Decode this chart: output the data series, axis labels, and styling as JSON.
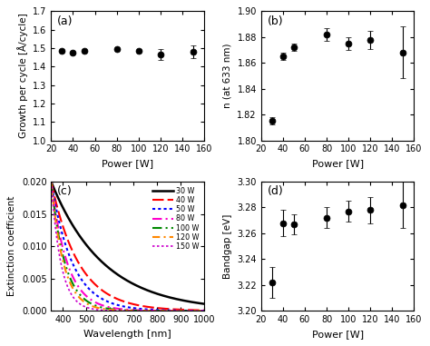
{
  "panel_a": {
    "x": [
      30,
      40,
      50,
      80,
      100,
      120,
      150
    ],
    "y": [
      1.487,
      1.477,
      1.487,
      1.497,
      1.487,
      1.465,
      1.48
    ],
    "yerr": [
      0.005,
      0.005,
      0.005,
      0.005,
      0.005,
      0.03,
      0.035
    ],
    "xlabel": "Power [W]",
    "ylabel": "Growth per cycle [Å/cycle]",
    "label": "(a)",
    "xlim": [
      20,
      160
    ],
    "ylim": [
      1.0,
      1.7
    ],
    "yticks": [
      1.0,
      1.1,
      1.2,
      1.3,
      1.4,
      1.5,
      1.6,
      1.7
    ],
    "xticks": [
      20,
      40,
      60,
      80,
      100,
      120,
      140,
      160
    ]
  },
  "panel_b": {
    "x": [
      30,
      40,
      50,
      80,
      100,
      120,
      150
    ],
    "y": [
      1.815,
      1.865,
      1.872,
      1.882,
      1.875,
      1.878,
      1.868
    ],
    "yerr": [
      0.003,
      0.003,
      0.003,
      0.005,
      0.005,
      0.007,
      0.02
    ],
    "xlabel": "Power [W]",
    "ylabel": "n (at 633 nm)",
    "label": "(b)",
    "xlim": [
      20,
      160
    ],
    "ylim": [
      1.8,
      1.9
    ],
    "yticks": [
      1.8,
      1.82,
      1.84,
      1.86,
      1.88,
      1.9
    ],
    "xticks": [
      20,
      40,
      60,
      80,
      100,
      120,
      140,
      160
    ]
  },
  "panel_c": {
    "xlabel": "Wavelength [nm]",
    "ylabel": "Extinction coefficient",
    "label": "(c)",
    "xlim": [
      350,
      1000
    ],
    "ylim": [
      0,
      0.02
    ],
    "yticks": [
      0.0,
      0.005,
      0.01,
      0.015,
      0.02
    ],
    "xticks": [
      400,
      500,
      600,
      700,
      800,
      900,
      1000
    ],
    "labels": [
      "30 W",
      "40 W",
      "50 W",
      "80 W",
      "100 W",
      "120 W",
      "150 W"
    ],
    "colors": [
      "#000000",
      "#ff0000",
      "#0000ff",
      "#ff00cc",
      "#008800",
      "#ff8800",
      "#cc00cc"
    ],
    "linestyles": [
      "-",
      "--",
      ":",
      "-.",
      "-.",
      "--",
      ":"
    ],
    "linewidths": [
      1.8,
      1.5,
      1.5,
      1.5,
      1.5,
      1.5,
      1.2
    ],
    "decay_rates": [
      0.0045,
      0.0085,
      0.011,
      0.0145,
      0.017,
      0.019,
      0.024
    ],
    "k0": [
      0.02,
      0.02,
      0.02,
      0.02,
      0.02,
      0.02,
      0.02
    ]
  },
  "panel_d": {
    "x": [
      30,
      40,
      50,
      80,
      100,
      120,
      150
    ],
    "y": [
      3.222,
      3.268,
      3.267,
      3.272,
      3.277,
      3.278,
      3.282
    ],
    "yerr": [
      0.012,
      0.01,
      0.008,
      0.008,
      0.008,
      0.01,
      0.018
    ],
    "xlabel": "Power [W]",
    "ylabel": "Bandgap [eV]",
    "label": "(d)",
    "xlim": [
      20,
      160
    ],
    "ylim": [
      3.2,
      3.3
    ],
    "yticks": [
      3.2,
      3.22,
      3.24,
      3.26,
      3.28,
      3.3
    ],
    "xticks": [
      20,
      40,
      60,
      80,
      100,
      120,
      140,
      160
    ]
  }
}
